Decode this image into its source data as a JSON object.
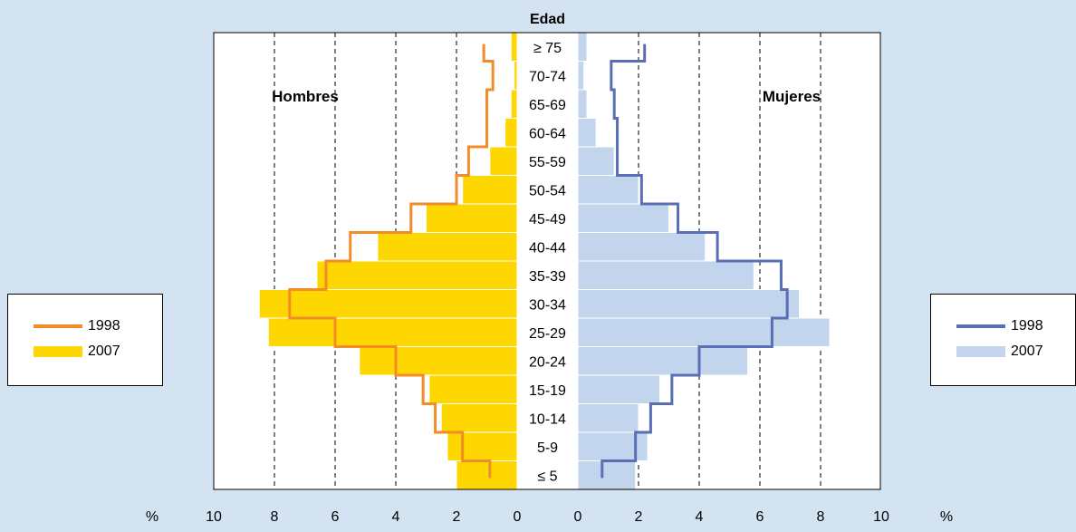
{
  "colors": {
    "background": "#d4e3f1",
    "men_2007": "#ffd700",
    "men_1998": "#f28c28",
    "women_2007": "#c3d5ec",
    "women_1998": "#5a6eb4"
  },
  "chart_data": {
    "type": "bar",
    "orientation": "horizontal-pyramid",
    "age_axis_label": "Edad",
    "left_panel_label": "Hombres",
    "right_panel_label": "Mujeres",
    "unit_label": "%",
    "xlim": [
      0,
      10
    ],
    "x_ticks": [
      "10",
      "8",
      "6",
      "4",
      "2",
      "0"
    ],
    "x_ticks_right": [
      "0",
      "2",
      "4",
      "6",
      "8",
      "10"
    ],
    "grid_dashed_at": [
      2,
      4,
      6,
      8
    ],
    "categories": [
      "≥ 75",
      "70-74",
      "65-69",
      "60-64",
      "55-59",
      "50-54",
      "45-49",
      "40-44",
      "35-39",
      "30-34",
      "25-29",
      "20-24",
      "15-19",
      "10-14",
      "5-9",
      "≤ 5"
    ],
    "series": [
      {
        "name": "2007",
        "panel": "Hombres",
        "kind": "bar",
        "values": [
          0.2,
          0.1,
          0.2,
          0.4,
          0.9,
          1.8,
          3.0,
          4.6,
          6.6,
          8.5,
          8.2,
          5.2,
          2.9,
          2.5,
          2.3,
          2.0
        ]
      },
      {
        "name": "1998",
        "panel": "Hombres",
        "kind": "step-line",
        "values": [
          1.1,
          0.8,
          1.0,
          1.0,
          1.6,
          2.0,
          3.5,
          5.5,
          6.3,
          7.5,
          6.0,
          4.0,
          3.1,
          2.7,
          1.8,
          0.9
        ]
      },
      {
        "name": "2007",
        "panel": "Mujeres",
        "kind": "bar",
        "values": [
          0.3,
          0.2,
          0.3,
          0.6,
          1.2,
          2.0,
          3.0,
          4.2,
          5.8,
          7.3,
          8.3,
          5.6,
          2.7,
          2.0,
          2.3,
          1.9
        ]
      },
      {
        "name": "1998",
        "panel": "Mujeres",
        "kind": "step-line",
        "values": [
          2.2,
          1.1,
          1.2,
          1.3,
          1.3,
          2.1,
          3.3,
          4.6,
          6.7,
          6.9,
          6.4,
          4.0,
          3.1,
          2.4,
          1.9,
          0.8
        ]
      }
    ]
  },
  "legend_left": {
    "line_label": "1998",
    "bar_label": "2007"
  },
  "legend_right": {
    "line_label": "1998",
    "bar_label": "2007"
  }
}
